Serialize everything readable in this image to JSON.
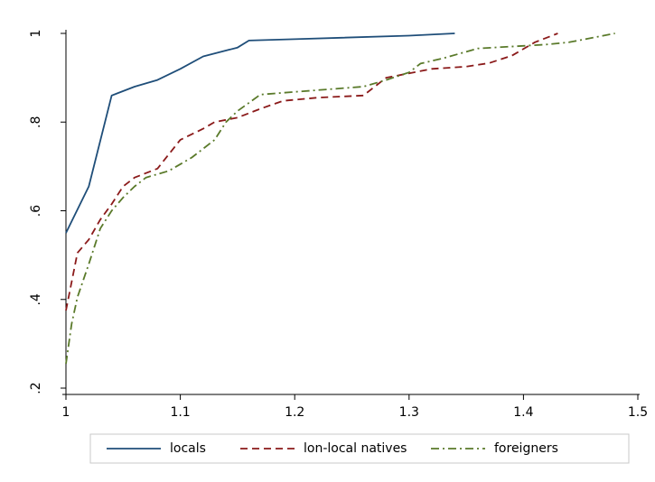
{
  "chart_data": {
    "type": "line",
    "title": "",
    "xlabel": "",
    "ylabel": "",
    "xlim": [
      1,
      1.5
    ],
    "ylim": [
      0.2,
      1
    ],
    "x_ticks": [
      1,
      1.1,
      1.2,
      1.3,
      1.4,
      1.5
    ],
    "x_tick_labels": [
      "1",
      "1.1",
      "1.2",
      "1.3",
      "1.4",
      "1.5"
    ],
    "y_ticks": [
      0.2,
      0.4,
      0.6,
      0.8,
      1
    ],
    "y_tick_labels": [
      ".2",
      ".4",
      ".6",
      ".8",
      "1"
    ],
    "grid": false,
    "legend_position": "bottom",
    "series": [
      {
        "name": "locals",
        "color": "#1f4e79",
        "dash": "solid",
        "points": [
          [
            1.0,
            0.55
          ],
          [
            1.02,
            0.655
          ],
          [
            1.04,
            0.86
          ],
          [
            1.06,
            0.88
          ],
          [
            1.08,
            0.895
          ],
          [
            1.1,
            0.92
          ],
          [
            1.12,
            0.948
          ],
          [
            1.15,
            0.968
          ],
          [
            1.16,
            0.984
          ],
          [
            1.2,
            0.987
          ],
          [
            1.3,
            0.995
          ],
          [
            1.34,
            1.0
          ]
        ]
      },
      {
        "name": "lon-local natives",
        "color": "#8b1a1a",
        "dash": "dashed",
        "points": [
          [
            1.0,
            0.375
          ],
          [
            1.01,
            0.505
          ],
          [
            1.02,
            0.535
          ],
          [
            1.03,
            0.58
          ],
          [
            1.04,
            0.615
          ],
          [
            1.05,
            0.655
          ],
          [
            1.06,
            0.675
          ],
          [
            1.08,
            0.695
          ],
          [
            1.1,
            0.76
          ],
          [
            1.12,
            0.785
          ],
          [
            1.13,
            0.8
          ],
          [
            1.15,
            0.81
          ],
          [
            1.17,
            0.83
          ],
          [
            1.19,
            0.848
          ],
          [
            1.22,
            0.855
          ],
          [
            1.26,
            0.86
          ],
          [
            1.28,
            0.9
          ],
          [
            1.3,
            0.91
          ],
          [
            1.32,
            0.92
          ],
          [
            1.35,
            0.925
          ],
          [
            1.37,
            0.933
          ],
          [
            1.39,
            0.95
          ],
          [
            1.41,
            0.98
          ],
          [
            1.43,
            1.0
          ]
        ]
      },
      {
        "name": "foreigners",
        "color": "#5a7a2a",
        "dash": "dashdot",
        "points": [
          [
            1.0,
            0.255
          ],
          [
            1.005,
            0.345
          ],
          [
            1.01,
            0.405
          ],
          [
            1.02,
            0.48
          ],
          [
            1.03,
            0.56
          ],
          [
            1.04,
            0.6
          ],
          [
            1.05,
            0.63
          ],
          [
            1.06,
            0.655
          ],
          [
            1.07,
            0.675
          ],
          [
            1.09,
            0.69
          ],
          [
            1.11,
            0.72
          ],
          [
            1.13,
            0.76
          ],
          [
            1.14,
            0.8
          ],
          [
            1.15,
            0.825
          ],
          [
            1.17,
            0.862
          ],
          [
            1.2,
            0.868
          ],
          [
            1.26,
            0.88
          ],
          [
            1.28,
            0.895
          ],
          [
            1.3,
            0.912
          ],
          [
            1.31,
            0.932
          ],
          [
            1.33,
            0.944
          ],
          [
            1.36,
            0.966
          ],
          [
            1.4,
            0.972
          ],
          [
            1.42,
            0.975
          ],
          [
            1.44,
            0.98
          ],
          [
            1.48,
            1.0
          ]
        ]
      }
    ]
  }
}
